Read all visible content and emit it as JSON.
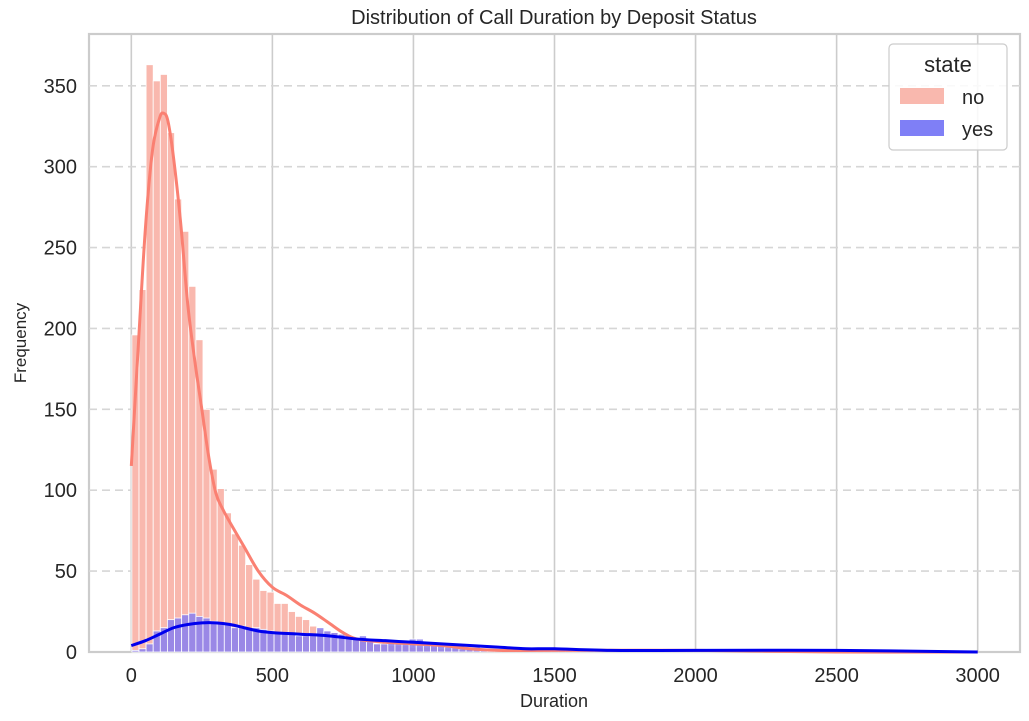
{
  "chart_data": {
    "type": "histogram",
    "title": "Distribution of Call Duration by Deposit Status",
    "xlabel": "Duration",
    "ylabel": "Frequency",
    "xlim": [
      -150,
      3150
    ],
    "ylim": [
      0,
      382
    ],
    "xticks": [
      0,
      500,
      1000,
      1500,
      2000,
      2500,
      3000
    ],
    "yticks": [
      0,
      50,
      100,
      150,
      200,
      250,
      300,
      350
    ],
    "grid": "on",
    "bin_start": 2,
    "bin_width": 25.2,
    "legend": {
      "title": "state",
      "placement": "top-right"
    },
    "series": [
      {
        "name": "no",
        "color": "#fa8072",
        "bar_color": "#f9b8ae",
        "values": [
          196,
          224,
          363,
          353,
          357,
          321,
          280,
          260,
          226,
          193,
          150,
          113,
          101,
          86,
          73,
          66,
          54,
          45,
          38,
          37,
          30,
          30,
          25,
          22,
          20,
          16,
          14,
          13,
          12,
          11,
          10,
          8,
          7,
          6,
          5,
          5,
          4,
          4,
          4,
          3,
          3,
          3,
          3,
          2,
          2,
          2,
          2,
          2,
          2,
          2,
          2,
          1,
          1,
          1,
          1,
          1,
          1,
          1,
          1,
          1,
          1,
          1,
          1,
          1,
          1,
          1,
          1,
          1,
          1,
          1,
          1,
          1,
          1,
          1,
          1,
          1,
          1,
          1,
          1,
          1,
          1,
          1,
          1,
          1,
          1,
          1,
          1,
          1,
          1,
          1,
          1,
          1,
          1,
          1,
          1,
          1,
          1,
          1,
          1,
          1,
          1,
          1,
          1,
          1,
          1,
          1,
          1,
          1,
          1,
          1,
          1,
          1,
          1,
          1
        ],
        "kde": [
          [
            0,
            115
          ],
          [
            25,
            190
          ],
          [
            50,
            262
          ],
          [
            75,
            310
          ],
          [
            100,
            330
          ],
          [
            115,
            333
          ],
          [
            130,
            328
          ],
          [
            150,
            305
          ],
          [
            175,
            265
          ],
          [
            200,
            215
          ],
          [
            225,
            180
          ],
          [
            250,
            150
          ],
          [
            275,
            120
          ],
          [
            300,
            98
          ],
          [
            325,
            88
          ],
          [
            350,
            80
          ],
          [
            400,
            65
          ],
          [
            450,
            50
          ],
          [
            500,
            40
          ],
          [
            550,
            35
          ],
          [
            600,
            29
          ],
          [
            650,
            24
          ],
          [
            700,
            18
          ],
          [
            750,
            12
          ],
          [
            800,
            8
          ],
          [
            900,
            6
          ],
          [
            1000,
            5
          ],
          [
            1100,
            4
          ],
          [
            1200,
            2
          ],
          [
            1300,
            1
          ],
          [
            1500,
            1
          ],
          [
            2000,
            1
          ],
          [
            2500,
            0
          ],
          [
            3000,
            0
          ]
        ]
      },
      {
        "name": "yes",
        "color": "#0000ee",
        "bar_color": "#8a7ff0",
        "values": [
          1,
          2,
          5,
          13,
          15,
          20,
          21,
          23,
          24,
          22,
          21,
          19,
          18,
          17,
          15,
          16,
          14,
          15,
          14,
          13,
          12,
          12,
          11,
          10,
          10,
          11,
          15,
          13,
          12,
          11,
          10,
          8,
          10,
          8,
          5,
          5,
          7,
          6,
          5,
          8,
          8,
          5,
          5,
          4,
          3,
          3,
          2,
          2,
          3,
          2,
          2,
          2,
          2,
          1,
          1,
          1,
          1,
          1,
          1,
          1,
          1,
          1,
          1,
          1,
          1,
          1,
          1,
          1,
          1,
          1,
          1,
          1,
          1,
          1,
          1,
          1,
          1,
          1,
          1,
          1,
          1,
          1,
          1,
          1,
          1,
          1,
          1,
          1,
          1,
          1,
          1,
          1,
          1,
          1,
          1,
          1,
          1,
          1,
          1,
          1,
          1,
          1,
          1,
          1,
          1,
          1,
          1,
          1,
          1,
          1,
          1,
          1,
          1,
          1
        ],
        "kde": [
          [
            0,
            4
          ],
          [
            50,
            7
          ],
          [
            100,
            11
          ],
          [
            150,
            15
          ],
          [
            200,
            17
          ],
          [
            250,
            18
          ],
          [
            300,
            18
          ],
          [
            350,
            17
          ],
          [
            400,
            15
          ],
          [
            450,
            13
          ],
          [
            500,
            12
          ],
          [
            600,
            11
          ],
          [
            700,
            10
          ],
          [
            800,
            8
          ],
          [
            900,
            7
          ],
          [
            1000,
            6
          ],
          [
            1100,
            5
          ],
          [
            1200,
            4
          ],
          [
            1300,
            3
          ],
          [
            1400,
            2
          ],
          [
            1500,
            2
          ],
          [
            1700,
            1
          ],
          [
            2000,
            1
          ],
          [
            2500,
            1
          ],
          [
            3000,
            0
          ]
        ]
      }
    ]
  }
}
